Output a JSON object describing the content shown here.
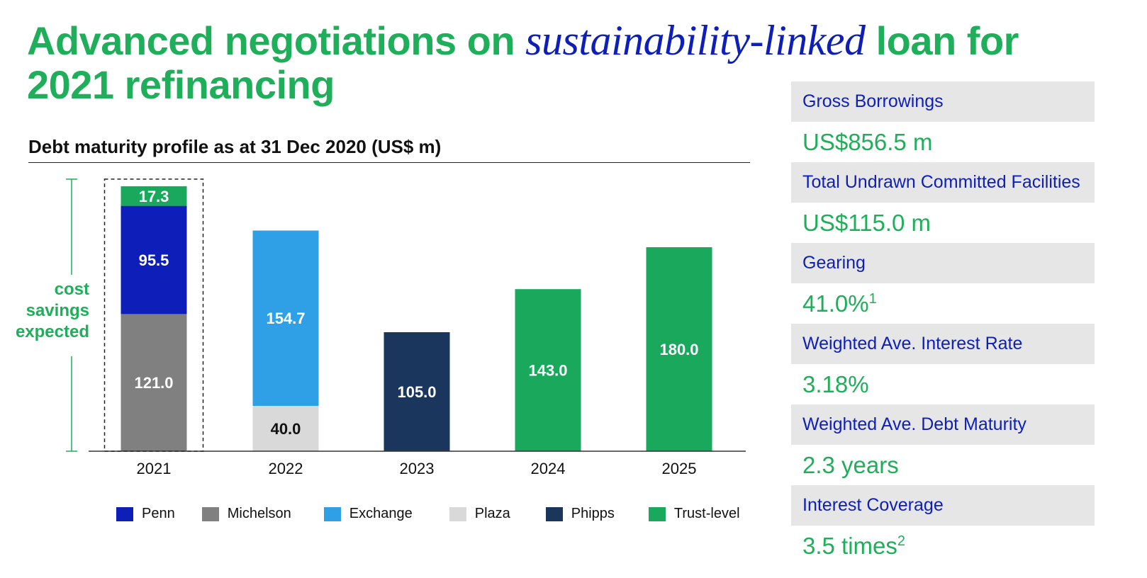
{
  "header": {
    "title_part1": "Advanced negotiations on ",
    "title_emphasis": "sustainability-linked",
    "title_part2": " loan for 2021 refinancing"
  },
  "chart_data": {
    "type": "bar",
    "stacked": true,
    "title": "Debt maturity profile as at 31 Dec 2020 (US$ m)",
    "categories": [
      "2021",
      "2022",
      "2023",
      "2024",
      "2025"
    ],
    "series": [
      {
        "name": "Penn",
        "color": "#0d1fb8",
        "values": [
          95.5,
          0,
          0,
          0,
          0
        ]
      },
      {
        "name": "Michelson",
        "color": "#808080",
        "values": [
          121.0,
          0,
          0,
          0,
          0
        ]
      },
      {
        "name": "Exchange",
        "color": "#2fa0e6",
        "values": [
          0,
          154.7,
          0,
          0,
          0
        ]
      },
      {
        "name": "Plaza",
        "color": "#d9d9d9",
        "values": [
          0,
          40.0,
          0,
          0,
          0
        ]
      },
      {
        "name": "Phipps",
        "color": "#1a365d",
        "values": [
          0,
          0,
          105.0,
          0,
          0
        ]
      },
      {
        "name": "Trust-level",
        "color": "#1aa85c",
        "values": [
          17.3,
          0,
          0,
          143.0,
          180.0
        ]
      }
    ],
    "stack_order": [
      "Michelson",
      "Plaza",
      "Phipps",
      "Penn",
      "Exchange",
      "Trust-level"
    ],
    "data_labels": [
      {
        "category": "2021",
        "series": "Trust-level",
        "text": "17.3",
        "color": "#ffffff"
      },
      {
        "category": "2021",
        "series": "Penn",
        "text": "95.5",
        "color": "#ffffff"
      },
      {
        "category": "2021",
        "series": "Michelson",
        "text": "121.0",
        "color": "#ffffff"
      },
      {
        "category": "2022",
        "series": "Exchange",
        "text": "154.7",
        "color": "#ffffff"
      },
      {
        "category": "2022",
        "series": "Plaza",
        "text": "40.0",
        "color": "#111111"
      },
      {
        "category": "2023",
        "series": "Phipps",
        "text": "105.0",
        "color": "#ffffff"
      },
      {
        "category": "2024",
        "series": "Trust-level",
        "text": "143.0",
        "color": "#ffffff"
      },
      {
        "category": "2025",
        "series": "Trust-level",
        "text": "180.0",
        "color": "#ffffff"
      }
    ],
    "ylim": [
      0,
      240
    ],
    "annotation": "cost savings expected",
    "highlighted_category": "2021",
    "grid": false,
    "legend_position": "bottom"
  },
  "kpis": [
    {
      "label": "Gross Borrowings",
      "value": "US$856.5 m",
      "note": ""
    },
    {
      "label": "Total Undrawn Committed Facilities",
      "value": "US$115.0 m",
      "note": ""
    },
    {
      "label": "Gearing",
      "value": "41.0%",
      "note": "1"
    },
    {
      "label": "Weighted Ave. Interest Rate",
      "value": "3.18%",
      "note": ""
    },
    {
      "label": "Weighted Ave. Debt Maturity",
      "value": "2.3 years",
      "note": ""
    },
    {
      "label": "Interest Coverage",
      "value": "3.5 times",
      "note": "2"
    }
  ],
  "colors": {
    "title_green": "#1fae5a",
    "title_blue": "#0d1fb8",
    "kpi_label_bg": "#e6e6e6"
  }
}
